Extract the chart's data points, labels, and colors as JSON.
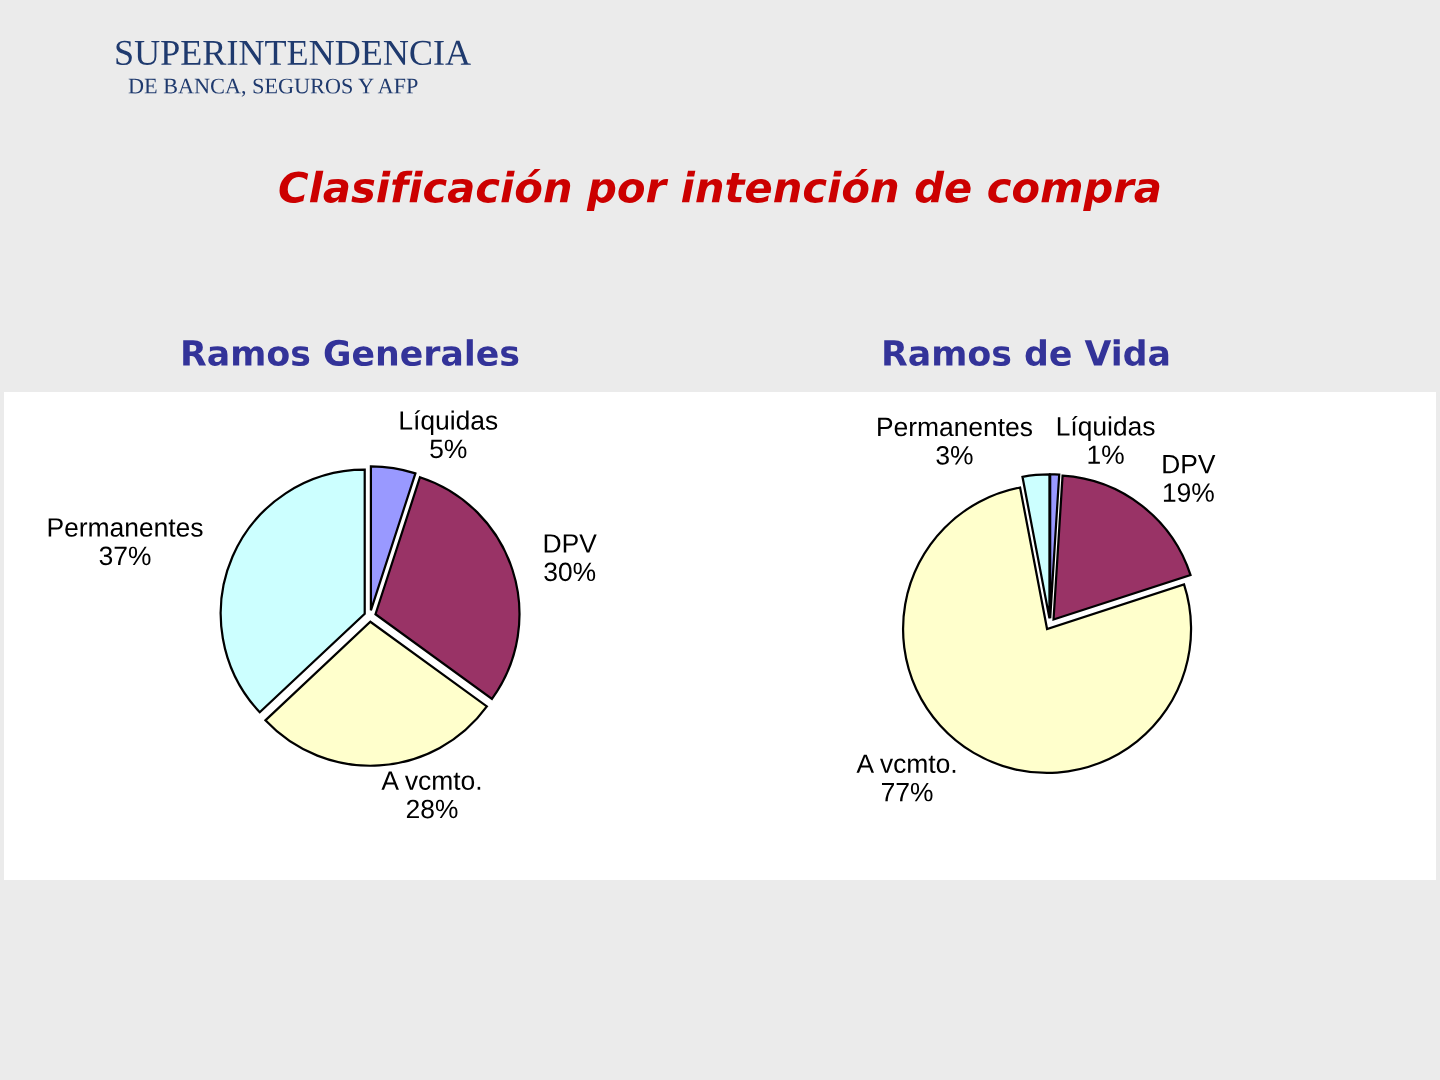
{
  "chart_data": [
    {
      "type": "pie",
      "title": "Clasificación por intención de compra",
      "subtitle": "Ramos Generales",
      "annotations": [
        "SUPERINTENDENCIA",
        "DE BANCA, SEGUROS Y AFP"
      ],
      "categories": [
        "Líquidas",
        "DPV",
        "A vcmto.",
        "Permanentes"
      ],
      "values": [
        5,
        30,
        28,
        37
      ],
      "value_labels": [
        "5%",
        "30%",
        "28%",
        "37%"
      ],
      "colors": [
        "#9999ff",
        "#993366",
        "#ffffcc",
        "#ccffff"
      ]
    },
    {
      "type": "pie",
      "subtitle": "Ramos de Vida",
      "categories": [
        "Líquidas",
        "DPV",
        "A vcmto.",
        "Permanentes"
      ],
      "values": [
        1,
        19,
        77,
        3
      ],
      "value_labels": [
        "1%",
        "19%",
        "77%",
        "3%"
      ],
      "colors": [
        "#9999ff",
        "#993366",
        "#ffffcc",
        "#ccffff"
      ]
    }
  ]
}
